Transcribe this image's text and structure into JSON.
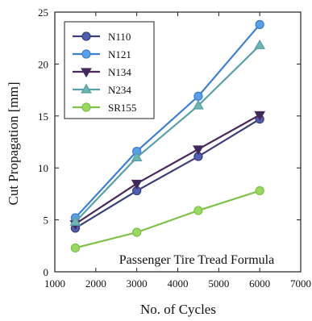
{
  "chart_data": {
    "type": "line",
    "title": "",
    "xlabel": "No. of Cycles",
    "ylabel": "Cut Propagation [mm]",
    "xlim": [
      1000,
      7000
    ],
    "ylim": [
      0,
      25
    ],
    "xticks": [
      1000,
      2000,
      3000,
      4000,
      5000,
      6000,
      7000
    ],
    "yticks": [
      0,
      5,
      10,
      15,
      20,
      25
    ],
    "grid": false,
    "legend_position": "top-left",
    "annotation": "Passenger Tire Tread Formula",
    "x": [
      1500,
      3000,
      4500,
      6000
    ],
    "series": [
      {
        "name": "N110",
        "values": [
          4.2,
          7.8,
          11.1,
          14.7
        ],
        "color": "#3c3f7a",
        "fill": "#4f5fb0",
        "marker": "circle"
      },
      {
        "name": "N121",
        "values": [
          5.2,
          11.6,
          16.9,
          23.8
        ],
        "color": "#3f7fd0",
        "fill": "#5b9fe8",
        "marker": "circle"
      },
      {
        "name": "N134",
        "values": [
          4.6,
          8.5,
          11.8,
          15.1
        ],
        "color": "#4a2a5c",
        "fill": "#3b2a5a",
        "marker": "triangle-down"
      },
      {
        "name": "N234",
        "values": [
          4.8,
          11.0,
          16.0,
          21.8
        ],
        "color": "#5aa0a8",
        "fill": "#6fb6b0",
        "marker": "triangle-up"
      },
      {
        "name": "SR155",
        "values": [
          2.3,
          3.8,
          5.9,
          7.8
        ],
        "color": "#7fc24a",
        "fill": "#9bd862",
        "marker": "circle"
      }
    ]
  }
}
